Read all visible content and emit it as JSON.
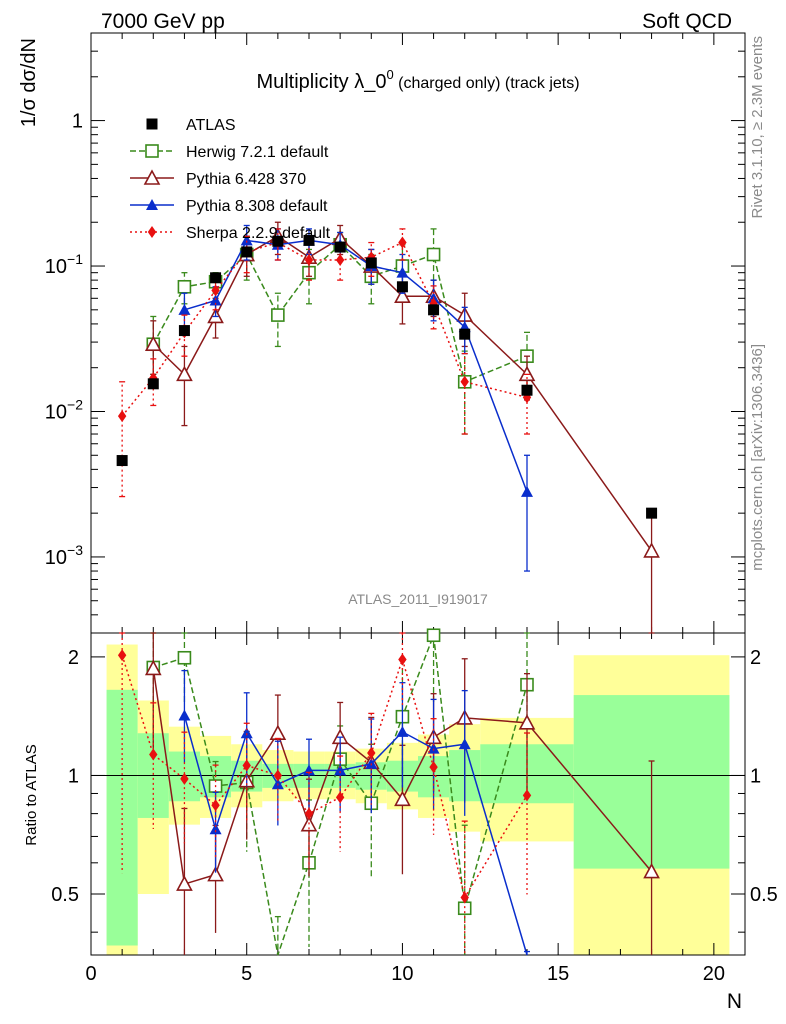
{
  "header": {
    "left": "7000 GeV pp",
    "right": "Soft QCD"
  },
  "side_labels": {
    "rivet": "Rivet 3.1.10, ≥ 2.3M events",
    "mcplots": "mcplots.cern.ch [arXiv:1306.3436]"
  },
  "chart_data": {
    "type": "scatter",
    "title": "Multiplicity λ_0⁰ (charged only) (track jets)",
    "analysis_id": "ATLAS_2011_I919017",
    "xlabel": "N",
    "ylabel": "1/σ dσ/dN",
    "ratio_ylabel": "Ratio to ATLAS",
    "x_range": [
      0,
      21
    ],
    "y_range": [
      0.0003,
      4
    ],
    "y_scale": "log",
    "ratio_range": [
      0.35,
      2.3
    ],
    "x_ticks": [
      "0",
      "5",
      "10",
      "15",
      "20"
    ],
    "y_ticks": [
      "10⁻³",
      "10⁻²",
      "10⁻¹",
      "1"
    ],
    "ratio_ticks": [
      "0.5",
      "1",
      "2"
    ],
    "legend_position": "top-left",
    "series": [
      {
        "name": "ATLAS",
        "color": "#000000",
        "marker": "square-filled",
        "points": [
          [
            1,
            0.0046
          ],
          [
            2,
            0.0155
          ],
          [
            3,
            0.036
          ],
          [
            4,
            0.083
          ],
          [
            5,
            0.125
          ],
          [
            6,
            0.148
          ],
          [
            7,
            0.15
          ],
          [
            8,
            0.135
          ],
          [
            9,
            0.105
          ],
          [
            10,
            0.072
          ],
          [
            11,
            0.05
          ],
          [
            12,
            0.034
          ],
          [
            14,
            0.014
          ],
          [
            18,
            0.002
          ]
        ]
      },
      {
        "name": "Herwig 7.2.1 default",
        "color": "#3a8a1c",
        "marker": "square-open",
        "dash": "6,3",
        "points": [
          [
            2,
            0.029
          ],
          [
            3,
            0.072
          ],
          [
            4,
            0.078
          ],
          [
            5,
            0.12
          ],
          [
            6,
            0.046
          ],
          [
            7,
            0.09
          ],
          [
            8,
            0.14
          ],
          [
            9,
            0.085
          ],
          [
            10,
            0.1
          ],
          [
            11,
            0.12
          ],
          [
            12,
            0.016
          ],
          [
            14,
            0.024
          ]
        ],
        "errors": [
          [
            2,
            0.018,
            0.045
          ],
          [
            3,
            0.055,
            0.09
          ],
          [
            4,
            0.065,
            0.09
          ],
          [
            5,
            0.08,
            0.16
          ],
          [
            6,
            0.028,
            0.065
          ],
          [
            7,
            0.055,
            0.13
          ],
          [
            8,
            0.11,
            0.17
          ],
          [
            9,
            0.055,
            0.12
          ],
          [
            10,
            0.06,
            0.14
          ],
          [
            11,
            0.08,
            0.18
          ],
          [
            12,
            0.007,
            0.026
          ],
          [
            14,
            0.013,
            0.035
          ]
        ],
        "ratio": [
          [
            2,
            1.88
          ],
          [
            3,
            1.99
          ],
          [
            4,
            0.94
          ],
          [
            5,
            0.96
          ],
          [
            6,
            0.31
          ],
          [
            7,
            0.6
          ],
          [
            8,
            1.1
          ],
          [
            9,
            0.85
          ],
          [
            10,
            1.41
          ],
          [
            11,
            2.27
          ],
          [
            12,
            0.46
          ],
          [
            14,
            1.7
          ]
        ]
      },
      {
        "name": "Pythia 6.428 370",
        "color": "#8b1a1a",
        "marker": "triangle-open",
        "dash": "",
        "points": [
          [
            2,
            0.029
          ],
          [
            3,
            0.018
          ],
          [
            4,
            0.045
          ],
          [
            5,
            0.12
          ],
          [
            6,
            0.16
          ],
          [
            7,
            0.115
          ],
          [
            8,
            0.155
          ],
          [
            9,
            0.1
          ],
          [
            10,
            0.062
          ],
          [
            11,
            0.062
          ],
          [
            12,
            0.046
          ],
          [
            14,
            0.018
          ],
          [
            18,
            0.0011
          ]
        ],
        "errors": [
          [
            2,
            0.018,
            0.042
          ],
          [
            3,
            0.008,
            0.028
          ],
          [
            4,
            0.032,
            0.06
          ],
          [
            5,
            0.085,
            0.16
          ],
          [
            6,
            0.12,
            0.2
          ],
          [
            7,
            0.085,
            0.15
          ],
          [
            8,
            0.12,
            0.19
          ],
          [
            9,
            0.075,
            0.13
          ],
          [
            10,
            0.04,
            0.085
          ],
          [
            11,
            0.045,
            0.08
          ],
          [
            12,
            0.028,
            0.065
          ],
          [
            14,
            0.012,
            0.024
          ],
          [
            18,
            0.0003,
            0.0021
          ]
        ],
        "ratio": [
          [
            2,
            1.87
          ],
          [
            3,
            0.53
          ],
          [
            4,
            0.56
          ],
          [
            5,
            0.97
          ],
          [
            6,
            1.28
          ],
          [
            7,
            0.75
          ],
          [
            8,
            1.25
          ],
          [
            9,
            1.08
          ],
          [
            10,
            0.87
          ],
          [
            11,
            1.25
          ],
          [
            12,
            1.4
          ],
          [
            14,
            1.36
          ],
          [
            18,
            0.57
          ]
        ]
      },
      {
        "name": "Pythia 8.308 default",
        "color": "#0a2ecc",
        "marker": "triangle-filled",
        "dash": "",
        "points": [
          [
            3,
            0.05
          ],
          [
            4,
            0.058
          ],
          [
            5,
            0.15
          ],
          [
            6,
            0.14
          ],
          [
            7,
            0.15
          ],
          [
            8,
            0.14
          ],
          [
            9,
            0.1
          ],
          [
            10,
            0.09
          ],
          [
            11,
            0.06
          ],
          [
            12,
            0.038
          ],
          [
            14,
            0.0028
          ]
        ],
        "errors": [
          [
            3,
            0.038,
            0.065
          ],
          [
            4,
            0.045,
            0.072
          ],
          [
            5,
            0.11,
            0.19
          ],
          [
            6,
            0.11,
            0.18
          ],
          [
            7,
            0.12,
            0.18
          ],
          [
            8,
            0.11,
            0.17
          ],
          [
            9,
            0.075,
            0.13
          ],
          [
            10,
            0.065,
            0.12
          ],
          [
            11,
            0.042,
            0.08
          ],
          [
            12,
            0.025,
            0.052
          ],
          [
            14,
            0.0008,
            0.005
          ]
        ],
        "ratio": [
          [
            3,
            1.42
          ],
          [
            4,
            0.73
          ],
          [
            5,
            1.28
          ],
          [
            6,
            0.95
          ],
          [
            7,
            1.03
          ],
          [
            8,
            1.03
          ],
          [
            9,
            1.07
          ],
          [
            10,
            1.29
          ],
          [
            11,
            1.17
          ],
          [
            12,
            1.2
          ],
          [
            14,
            0.2
          ]
        ]
      },
      {
        "name": "Sherpa 2.2.9 default",
        "color": "#e81010",
        "marker": "diamond-filled",
        "dash": "2,3",
        "points": [
          [
            1,
            0.0093
          ],
          [
            2,
            0.017
          ],
          [
            3,
            0.035
          ],
          [
            4,
            0.068
          ],
          [
            5,
            0.125
          ],
          [
            6,
            0.145
          ],
          [
            7,
            0.11
          ],
          [
            8,
            0.11
          ],
          [
            9,
            0.115
          ],
          [
            10,
            0.145
          ],
          [
            11,
            0.055
          ],
          [
            12,
            0.016
          ],
          [
            14,
            0.0125
          ]
        ],
        "errors": [
          [
            1,
            0.0026,
            0.016
          ],
          [
            2,
            0.011,
            0.023
          ],
          [
            3,
            0.024,
            0.046
          ],
          [
            4,
            0.05,
            0.086
          ],
          [
            5,
            0.09,
            0.16
          ],
          [
            6,
            0.11,
            0.18
          ],
          [
            7,
            0.08,
            0.14
          ],
          [
            8,
            0.08,
            0.14
          ],
          [
            9,
            0.085,
            0.145
          ],
          [
            10,
            0.11,
            0.18
          ],
          [
            11,
            0.037,
            0.073
          ],
          [
            12,
            0.007,
            0.025
          ],
          [
            14,
            0.007,
            0.018
          ]
        ],
        "ratio": [
          [
            1,
            2.02
          ],
          [
            2,
            1.13
          ],
          [
            3,
            0.98
          ],
          [
            4,
            0.84
          ],
          [
            5,
            1.06
          ],
          [
            6,
            1.0
          ],
          [
            7,
            0.8
          ],
          [
            8,
            0.88
          ],
          [
            9,
            1.14
          ],
          [
            10,
            1.97
          ],
          [
            11,
            1.05
          ],
          [
            12,
            0.49
          ],
          [
            14,
            0.89
          ]
        ]
      }
    ],
    "ratio_bands": [
      {
        "x": [
          0.5,
          1.5
        ],
        "yellow": [
          0.32,
          2.15
        ],
        "green": [
          0.37,
          1.65
        ]
      },
      {
        "x": [
          1.5,
          2.5
        ],
        "yellow": [
          0.5,
          1.55
        ],
        "green": [
          0.78,
          1.28
        ]
      },
      {
        "x": [
          2.5,
          3.5
        ],
        "yellow": [
          0.75,
          1.33
        ],
        "green": [
          0.86,
          1.15
        ]
      },
      {
        "x": [
          3.5,
          4.5
        ],
        "yellow": [
          0.78,
          1.26
        ],
        "green": [
          0.88,
          1.12
        ]
      },
      {
        "x": [
          4.5,
          5.5
        ],
        "yellow": [
          0.83,
          1.2
        ],
        "green": [
          0.91,
          1.09
        ]
      },
      {
        "x": [
          5.5,
          6.5
        ],
        "yellow": [
          0.86,
          1.16
        ],
        "green": [
          0.93,
          1.07
        ]
      },
      {
        "x": [
          6.5,
          7.5
        ],
        "yellow": [
          0.87,
          1.15
        ],
        "green": [
          0.93,
          1.07
        ]
      },
      {
        "x": [
          7.5,
          8.5
        ],
        "yellow": [
          0.87,
          1.15
        ],
        "green": [
          0.93,
          1.07
        ]
      },
      {
        "x": [
          8.5,
          9.5
        ],
        "yellow": [
          0.85,
          1.17
        ],
        "green": [
          0.92,
          1.08
        ]
      },
      {
        "x": [
          9.5,
          10.5
        ],
        "yellow": [
          0.82,
          1.21
        ],
        "green": [
          0.91,
          1.09
        ]
      },
      {
        "x": [
          10.5,
          11.5
        ],
        "yellow": [
          0.78,
          1.27
        ],
        "green": [
          0.88,
          1.12
        ]
      },
      {
        "x": [
          11.5,
          12.5
        ],
        "yellow": [
          0.72,
          1.35
        ],
        "green": [
          0.86,
          1.16
        ]
      },
      {
        "x": [
          12.5,
          15.5
        ],
        "yellow": [
          0.68,
          1.4
        ],
        "green": [
          0.85,
          1.2
        ]
      },
      {
        "x": [
          15.5,
          20.5
        ],
        "yellow": [
          0.35,
          2.02
        ],
        "green": [
          0.58,
          1.6
        ]
      }
    ]
  }
}
